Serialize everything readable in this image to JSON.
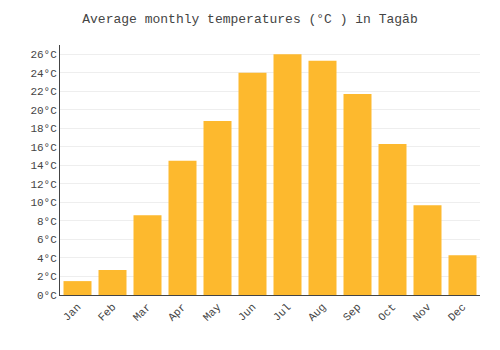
{
  "chart_data": {
    "type": "bar",
    "title": "Average monthly temperatures (°C ) in Tagāb",
    "categories": [
      "Jan",
      "Feb",
      "Mar",
      "Apr",
      "May",
      "Jun",
      "Jul",
      "Aug",
      "Sep",
      "Oct",
      "Nov",
      "Dec"
    ],
    "values": [
      1.5,
      2.7,
      8.6,
      14.5,
      18.8,
      24.0,
      26.0,
      25.3,
      21.7,
      16.3,
      9.7,
      4.3
    ],
    "color": "#FDB92E",
    "ylim": [
      0,
      27
    ],
    "yticks": [
      {
        "value": 0,
        "label": "0°C"
      },
      {
        "value": 2,
        "label": "2°C"
      },
      {
        "value": 4,
        "label": "4°C"
      },
      {
        "value": 6,
        "label": "6°C"
      },
      {
        "value": 8,
        "label": "8°C"
      },
      {
        "value": 10,
        "label": "10°C"
      },
      {
        "value": 12,
        "label": "12°C"
      },
      {
        "value": 14,
        "label": "14°C"
      },
      {
        "value": 16,
        "label": "16°C"
      },
      {
        "value": 18,
        "label": "18°C"
      },
      {
        "value": 20,
        "label": "20°C"
      },
      {
        "value": 22,
        "label": "22°C"
      },
      {
        "value": 24,
        "label": "24°C"
      },
      {
        "value": 26,
        "label": "26°C"
      }
    ],
    "grid": true
  }
}
